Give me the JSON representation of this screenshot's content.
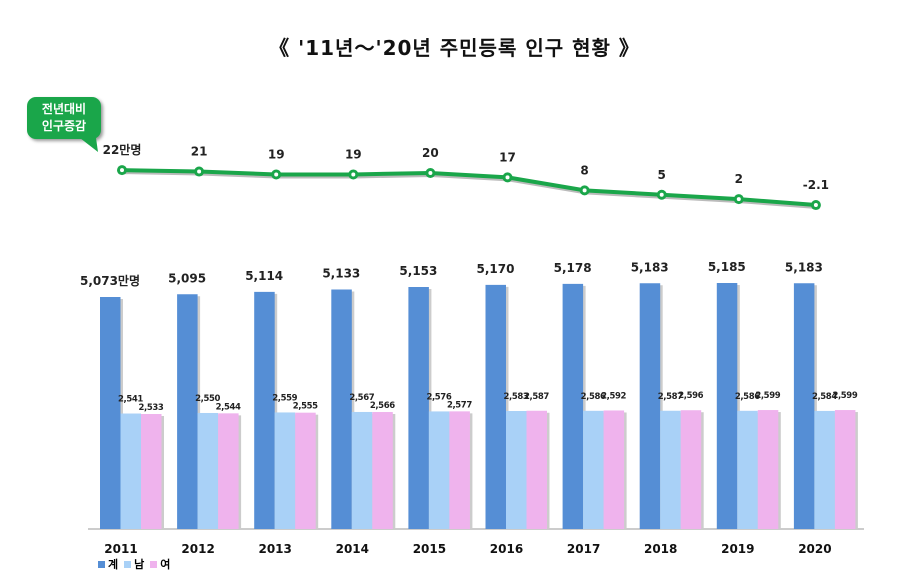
{
  "title": "《 '11년～'20년 주민등록 인구 현황 》",
  "callout": {
    "line1": "전년대비",
    "line2": "인구증감"
  },
  "chart_data": [
    {
      "type": "line",
      "categories": [
        "2011",
        "2012",
        "2013",
        "2014",
        "2015",
        "2016",
        "2017",
        "2018",
        "2019",
        "2020"
      ],
      "values": [
        22,
        21,
        19,
        19,
        20,
        17,
        8,
        5,
        2,
        -2.1
      ],
      "labels": [
        "22만명",
        "21",
        "19",
        "19",
        "20",
        "17",
        "8",
        "5",
        "2",
        "-2.1"
      ],
      "color": "#1aa64a"
    },
    {
      "type": "bar",
      "categories": [
        "2011",
        "2012",
        "2013",
        "2014",
        "2015",
        "2016",
        "2017",
        "2018",
        "2019",
        "2020"
      ],
      "series": [
        {
          "name": "계",
          "color": "#558ed5",
          "values": [
            5073,
            5095,
            5114,
            5133,
            5153,
            5170,
            5178,
            5183,
            5185,
            5183
          ],
          "labels": [
            "5,073만명",
            "5,095",
            "5,114",
            "5,133",
            "5,153",
            "5,170",
            "5,178",
            "5,183",
            "5,185",
            "5,183"
          ]
        },
        {
          "name": "남",
          "color": "#a9d1f7",
          "values": [
            2541,
            2550,
            2559,
            2567,
            2576,
            2583,
            2586,
            2587,
            2586,
            2584
          ]
        },
        {
          "name": "여",
          "color": "#efb3ed",
          "values": [
            2533,
            2544,
            2555,
            2566,
            2577,
            2587,
            2592,
            2596,
            2599,
            2599
          ]
        }
      ],
      "legend": "bottom-left",
      "grid": false
    }
  ]
}
